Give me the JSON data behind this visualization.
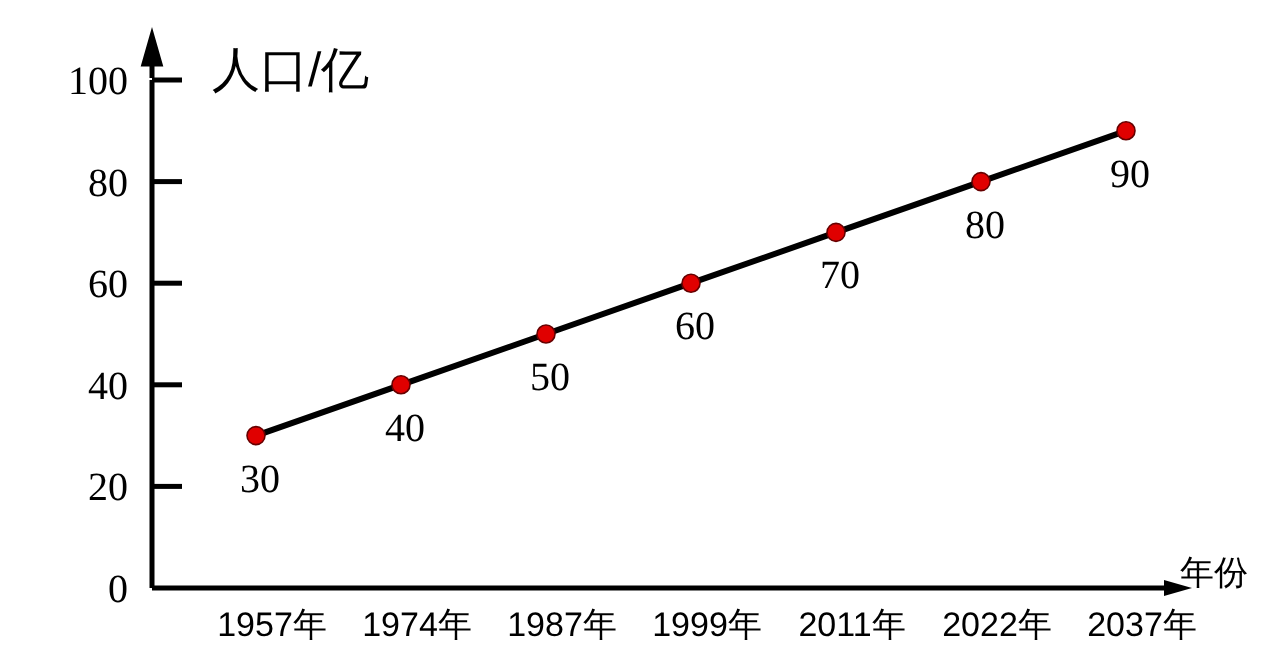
{
  "chart_data": {
    "type": "line",
    "ylabel": "人口/亿",
    "xlabel": "年份",
    "categories": [
      "1957年",
      "1974年",
      "1987年",
      "1999年",
      "2011年",
      "2022年",
      "2037年"
    ],
    "series": [
      {
        "color": "#000000",
        "values": [
          30,
          40,
          50,
          60,
          70,
          80,
          90
        ]
      }
    ],
    "ylim": [
      0,
      100
    ],
    "yticks": [
      0,
      20,
      40,
      60,
      80,
      100
    ],
    "data_labels": true,
    "marker": "circle",
    "line_style": "solid",
    "grid": false
  }
}
